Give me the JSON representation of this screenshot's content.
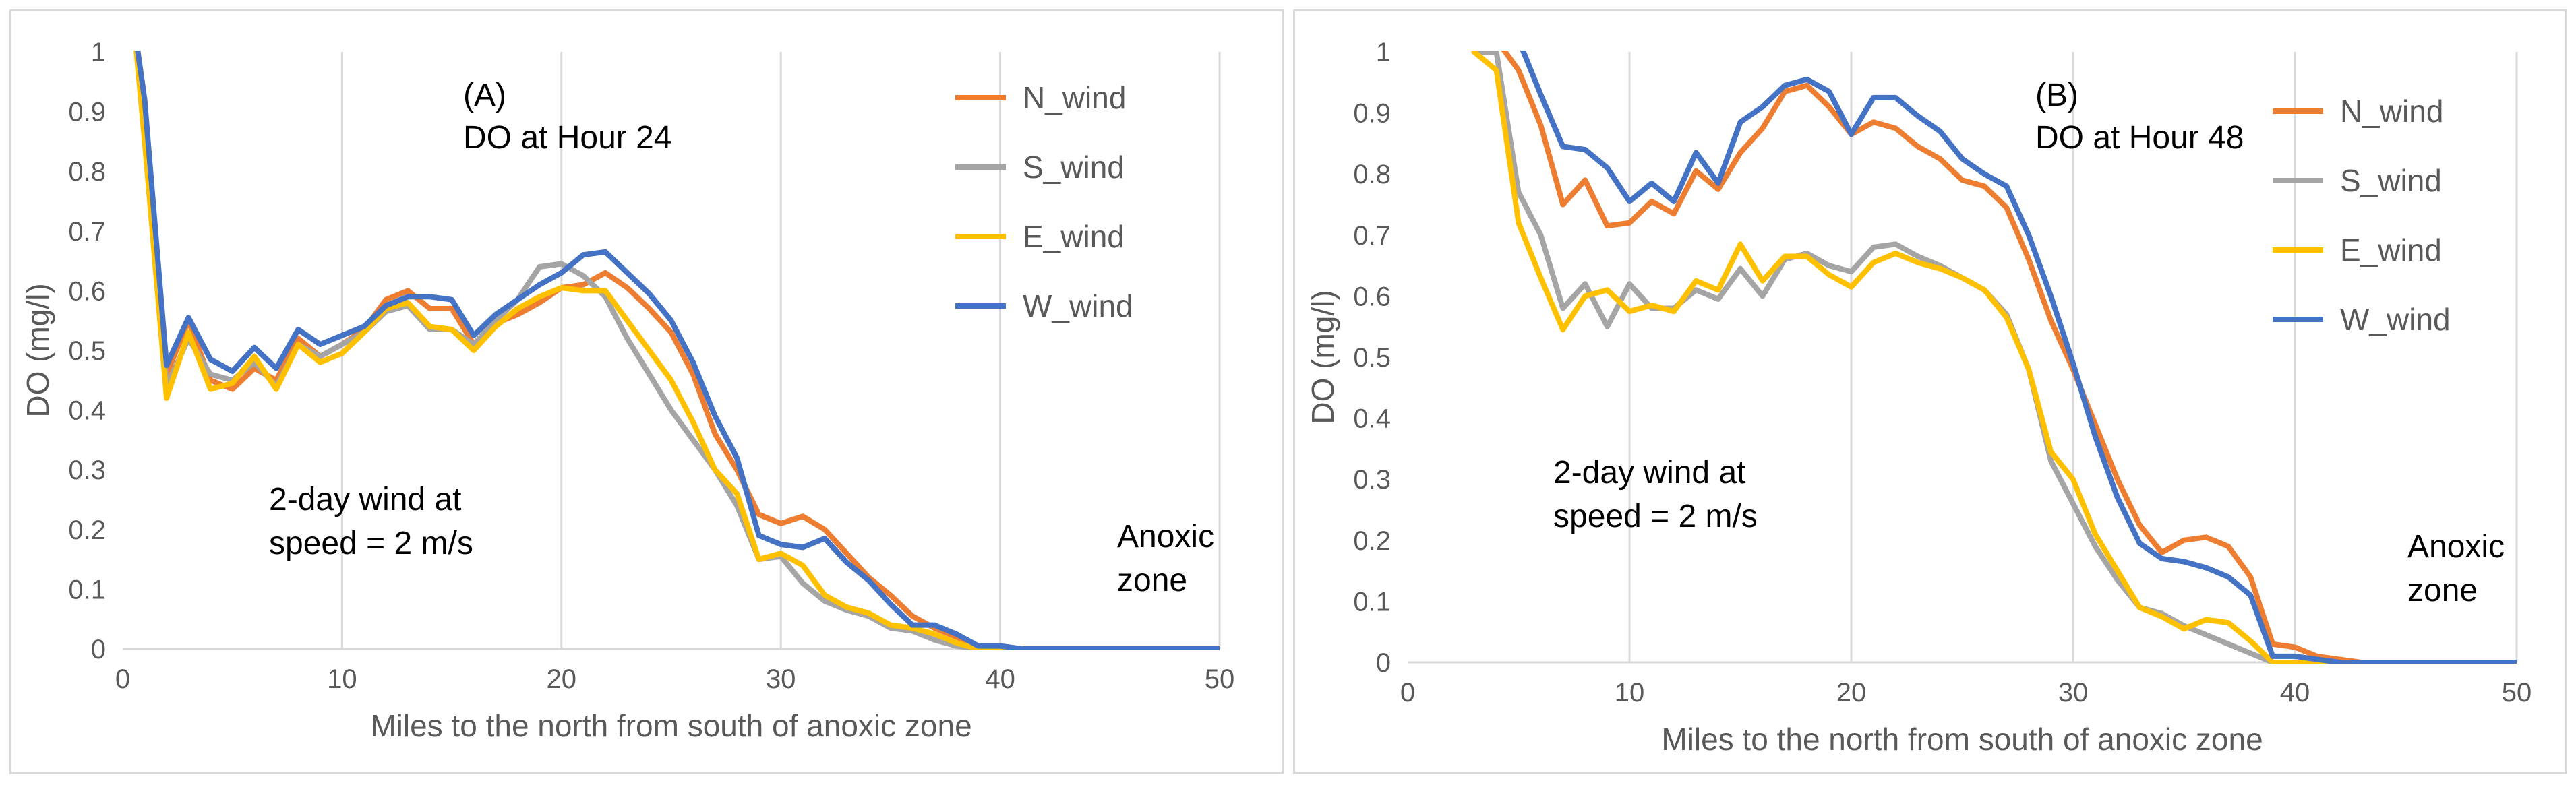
{
  "chart_data": [
    {
      "type": "line",
      "annotation_label": "(A)",
      "annotation_title": "DO at Hour 24",
      "annotation_wind": [
        "2-day wind at",
        "speed = 2 m/s"
      ],
      "annotation_zone": [
        "Anoxic",
        "zone"
      ],
      "xlabel": "Miles to the north from south of anoxic zone",
      "ylabel": "DO (mg/l)",
      "xlim": [
        0,
        50
      ],
      "ylim": [
        0,
        1
      ],
      "xticks": [
        "0",
        "10",
        "20",
        "30",
        "40",
        "50"
      ],
      "yticks": [
        "0",
        "0.1",
        "0.2",
        "0.3",
        "0.4",
        "0.5",
        "0.6",
        "0.7",
        "0.8",
        "0.9",
        "1"
      ],
      "grid": "vertical",
      "legend": "top-right",
      "x": [
        0.5,
        1,
        2,
        3,
        4,
        5,
        6,
        7,
        8,
        9,
        10,
        11,
        12,
        13,
        14,
        15,
        16,
        17,
        18,
        19,
        20,
        21,
        22,
        23,
        24,
        25,
        26,
        27,
        28,
        29,
        30,
        31,
        32,
        33,
        34,
        35,
        36,
        37,
        38,
        39,
        40,
        41,
        42,
        43,
        44,
        45,
        46,
        47,
        48,
        49,
        50
      ],
      "series": [
        {
          "name": "N_wind",
          "color": "#ED7D31",
          "values": [
            1.05,
            0.92,
            0.46,
            0.55,
            0.45,
            0.435,
            0.47,
            0.45,
            0.52,
            0.49,
            0.51,
            0.535,
            0.585,
            0.6,
            0.57,
            0.57,
            0.51,
            0.545,
            0.56,
            0.58,
            0.605,
            0.61,
            0.63,
            0.605,
            0.57,
            0.53,
            0.46,
            0.36,
            0.3,
            0.225,
            0.21,
            0.222,
            0.2,
            0.16,
            0.12,
            0.09,
            0.055,
            0.035,
            0.02,
            0.005,
            0,
            0,
            0,
            0,
            0,
            0,
            0,
            0,
            0,
            0,
            0
          ]
        },
        {
          "name": "S_wind",
          "color": "#A5A5A5",
          "values": [
            1.05,
            0.9,
            0.44,
            0.52,
            0.46,
            0.45,
            0.48,
            0.44,
            0.51,
            0.49,
            0.51,
            0.53,
            0.565,
            0.575,
            0.535,
            0.535,
            0.51,
            0.55,
            0.585,
            0.64,
            0.645,
            0.625,
            0.59,
            0.52,
            0.46,
            0.4,
            0.35,
            0.3,
            0.24,
            0.15,
            0.155,
            0.11,
            0.08,
            0.065,
            0.055,
            0.035,
            0.03,
            0.015,
            0.005,
            0,
            0,
            0,
            0,
            0,
            0,
            0,
            0,
            0,
            0,
            0,
            0
          ]
        },
        {
          "name": "E_wind",
          "color": "#FFC000",
          "values": [
            1.05,
            0.85,
            0.42,
            0.53,
            0.435,
            0.445,
            0.49,
            0.435,
            0.51,
            0.48,
            0.495,
            0.53,
            0.57,
            0.58,
            0.54,
            0.535,
            0.5,
            0.54,
            0.57,
            0.59,
            0.605,
            0.6,
            0.6,
            0.55,
            0.5,
            0.45,
            0.38,
            0.3,
            0.26,
            0.15,
            0.16,
            0.14,
            0.09,
            0.07,
            0.06,
            0.04,
            0.035,
            0.025,
            0.01,
            0,
            0,
            0,
            0,
            0,
            0,
            0,
            0,
            0,
            0,
            0,
            0
          ]
        },
        {
          "name": "W_wind",
          "color": "#4472C4",
          "values": [
            1.05,
            0.92,
            0.475,
            0.555,
            0.485,
            0.465,
            0.505,
            0.47,
            0.535,
            0.51,
            0.525,
            0.54,
            0.575,
            0.59,
            0.59,
            0.585,
            0.525,
            0.56,
            0.585,
            0.61,
            0.63,
            0.66,
            0.665,
            0.63,
            0.595,
            0.55,
            0.48,
            0.39,
            0.32,
            0.19,
            0.175,
            0.17,
            0.185,
            0.145,
            0.115,
            0.075,
            0.04,
            0.04,
            0.025,
            0.005,
            0.005,
            0,
            0,
            0,
            0,
            0,
            0,
            0,
            0,
            0,
            0
          ]
        }
      ]
    },
    {
      "type": "line",
      "annotation_label": "(B)",
      "annotation_title": "DO at Hour 48",
      "annotation_wind": [
        "2-day wind at",
        "speed = 2 m/s"
      ],
      "annotation_zone": [
        "Anoxic",
        "zone"
      ],
      "xlabel": "Miles to the north from south of anoxic zone",
      "ylabel": "DO (mg/l)",
      "xlim": [
        0,
        50
      ],
      "ylim": [
        0,
        1
      ],
      "xticks": [
        "0",
        "10",
        "20",
        "30",
        "40",
        "50"
      ],
      "yticks": [
        "0",
        "0.1",
        "0.2",
        "0.3",
        "0.4",
        "0.5",
        "0.6",
        "0.7",
        "0.8",
        "0.9",
        "1"
      ],
      "grid": "vertical",
      "legend": "top-right",
      "x": [
        3,
        4,
        5,
        6,
        7,
        8,
        9,
        10,
        11,
        12,
        13,
        14,
        15,
        16,
        17,
        18,
        19,
        20,
        21,
        22,
        23,
        24,
        25,
        26,
        27,
        28,
        29,
        30,
        31,
        32,
        33,
        34,
        35,
        36,
        37,
        38,
        39,
        40,
        41,
        42,
        43,
        44,
        45,
        46,
        47,
        48,
        49,
        50
      ],
      "series": [
        {
          "name": "N_wind",
          "color": "#ED7D31",
          "values": [
            1.02,
            1.02,
            0.97,
            0.88,
            0.75,
            0.79,
            0.715,
            0.72,
            0.755,
            0.735,
            0.805,
            0.775,
            0.835,
            0.875,
            0.935,
            0.945,
            0.91,
            0.865,
            0.885,
            0.875,
            0.845,
            0.825,
            0.79,
            0.78,
            0.745,
            0.66,
            0.56,
            0.48,
            0.39,
            0.3,
            0.225,
            0.18,
            0.2,
            0.205,
            0.19,
            0.14,
            0.03,
            0.025,
            0.01,
            0.005,
            0,
            0,
            0,
            0,
            0,
            0,
            0,
            0
          ]
        },
        {
          "name": "S_wind",
          "color": "#A5A5A5",
          "values": [
            1.0,
            1.0,
            0.77,
            0.7,
            0.58,
            0.62,
            0.55,
            0.62,
            0.58,
            0.58,
            0.61,
            0.595,
            0.645,
            0.6,
            0.66,
            0.67,
            0.65,
            0.64,
            0.68,
            0.685,
            0.665,
            0.65,
            0.63,
            0.61,
            0.57,
            0.48,
            0.33,
            0.26,
            0.19,
            0.135,
            0.09,
            0.08,
            0.06,
            0.045,
            0.03,
            0.015,
            0,
            0,
            0,
            0,
            0,
            0,
            0,
            0,
            0,
            0,
            0,
            0
          ]
        },
        {
          "name": "E_wind",
          "color": "#FFC000",
          "values": [
            1.0,
            0.97,
            0.72,
            0.63,
            0.545,
            0.6,
            0.61,
            0.575,
            0.585,
            0.575,
            0.625,
            0.61,
            0.685,
            0.625,
            0.665,
            0.665,
            0.635,
            0.615,
            0.655,
            0.67,
            0.655,
            0.645,
            0.63,
            0.61,
            0.565,
            0.48,
            0.345,
            0.3,
            0.21,
            0.15,
            0.09,
            0.075,
            0.055,
            0.07,
            0.065,
            0.035,
            0,
            0,
            0,
            0,
            0,
            0,
            0,
            0,
            0,
            0,
            0,
            0
          ]
        },
        {
          "name": "W_wind",
          "color": "#4472C4",
          "values": [
            1.05,
            1.05,
            1.02,
            0.93,
            0.845,
            0.84,
            0.81,
            0.755,
            0.785,
            0.755,
            0.835,
            0.785,
            0.885,
            0.91,
            0.945,
            0.955,
            0.935,
            0.865,
            0.925,
            0.925,
            0.895,
            0.87,
            0.825,
            0.8,
            0.78,
            0.7,
            0.6,
            0.49,
            0.37,
            0.27,
            0.195,
            0.17,
            0.165,
            0.155,
            0.14,
            0.11,
            0.01,
            0.01,
            0.005,
            0,
            0,
            0,
            0,
            0,
            0,
            0,
            0,
            0
          ]
        }
      ]
    }
  ]
}
